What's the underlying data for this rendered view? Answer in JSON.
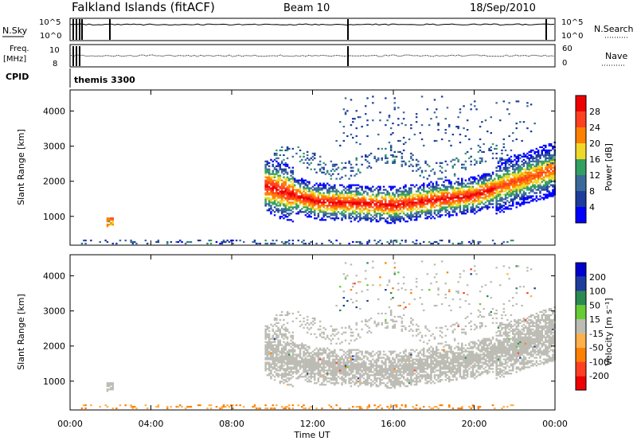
{
  "header": {
    "station": "Falkland Islands (fitACF)",
    "beam": "Beam 10",
    "date": "18/Sep/2010"
  },
  "strip_labels": {
    "nsky": "N.Sky",
    "nsearch": "N.Search",
    "freq_line1": "Freq.",
    "freq_line2": "[MHz]",
    "nave": "Nave",
    "cpid": "CPID",
    "cpid_value": "themis 3300"
  },
  "strip_ticks": {
    "noise_left": [
      "10^5",
      "10^0"
    ],
    "noise_right": [
      "10^5",
      "10^0"
    ],
    "freq_left": [
      "10",
      "8"
    ],
    "nave_right": [
      "60",
      "0"
    ]
  },
  "colors": {
    "power": [
      "#0000ff",
      "#1e3c9c",
      "#3a6a9a",
      "#32a060",
      "#f0d82a",
      "#ff8000",
      "#ff4020",
      "#ee0000"
    ],
    "velocity": [
      "#ee0000",
      "#ff4020",
      "#ff8000",
      "#ffb04a",
      "#bcbcb4",
      "#66cc33",
      "#2a8a50",
      "#1e3c9c",
      "#0000cc"
    ],
    "ground_scatter": "#bcbcb4"
  },
  "chart_data": [
    {
      "type": "heatmap",
      "title": "",
      "xlabel": "Time UT",
      "ylabel": "Slant Range [km]",
      "xlim": [
        "00:00",
        "00:00"
      ],
      "ylim": [
        180,
        4600
      ],
      "x_ticks": [
        "00:00",
        "04:00",
        "08:00",
        "12:00",
        "16:00",
        "20:00",
        "00:00"
      ],
      "y_ticks": [
        1000,
        2000,
        3000,
        4000
      ],
      "colorbar": {
        "label": "Power [dB]",
        "ticks": [
          "4",
          "8",
          "12",
          "16",
          "20",
          "24",
          "28"
        ]
      },
      "regions": [
        {
          "name": "main band",
          "t_start": 9.6,
          "t_end": 23.9,
          "range_center_km": 1500,
          "peak_power_db": 30
        },
        {
          "name": "upper band",
          "t_start": 14.0,
          "t_end": 23.9,
          "range_center_km": 2700,
          "peak_power_db": 12
        },
        {
          "name": "patch",
          "t_start": 1.8,
          "t_end": 2.1,
          "range_center_km": 800,
          "peak_power_db": 22
        }
      ]
    },
    {
      "type": "heatmap",
      "title": "",
      "xlabel": "Time UT",
      "ylabel": "Slant Range [km]",
      "xlim": [
        "00:00",
        "00:00"
      ],
      "ylim": [
        180,
        4600
      ],
      "x_ticks": [
        "00:00",
        "04:00",
        "08:00",
        "12:00",
        "16:00",
        "20:00",
        "00:00"
      ],
      "y_ticks": [
        1000,
        2000,
        3000,
        4000
      ],
      "colorbar": {
        "label": "Velocity [m s⁻¹]",
        "ticks": [
          "-200",
          "-100",
          "-50",
          "-15",
          "15",
          "50",
          "100",
          "200"
        ]
      },
      "regions": [
        {
          "name": "main band",
          "t_start": 9.6,
          "t_end": 23.9,
          "range_center_km": 1500,
          "velocity_ms": 0
        },
        {
          "name": "near range",
          "t_start": 0.5,
          "t_end": 21.5,
          "range_center_km": 250,
          "velocity_ms": -40
        }
      ]
    }
  ]
}
